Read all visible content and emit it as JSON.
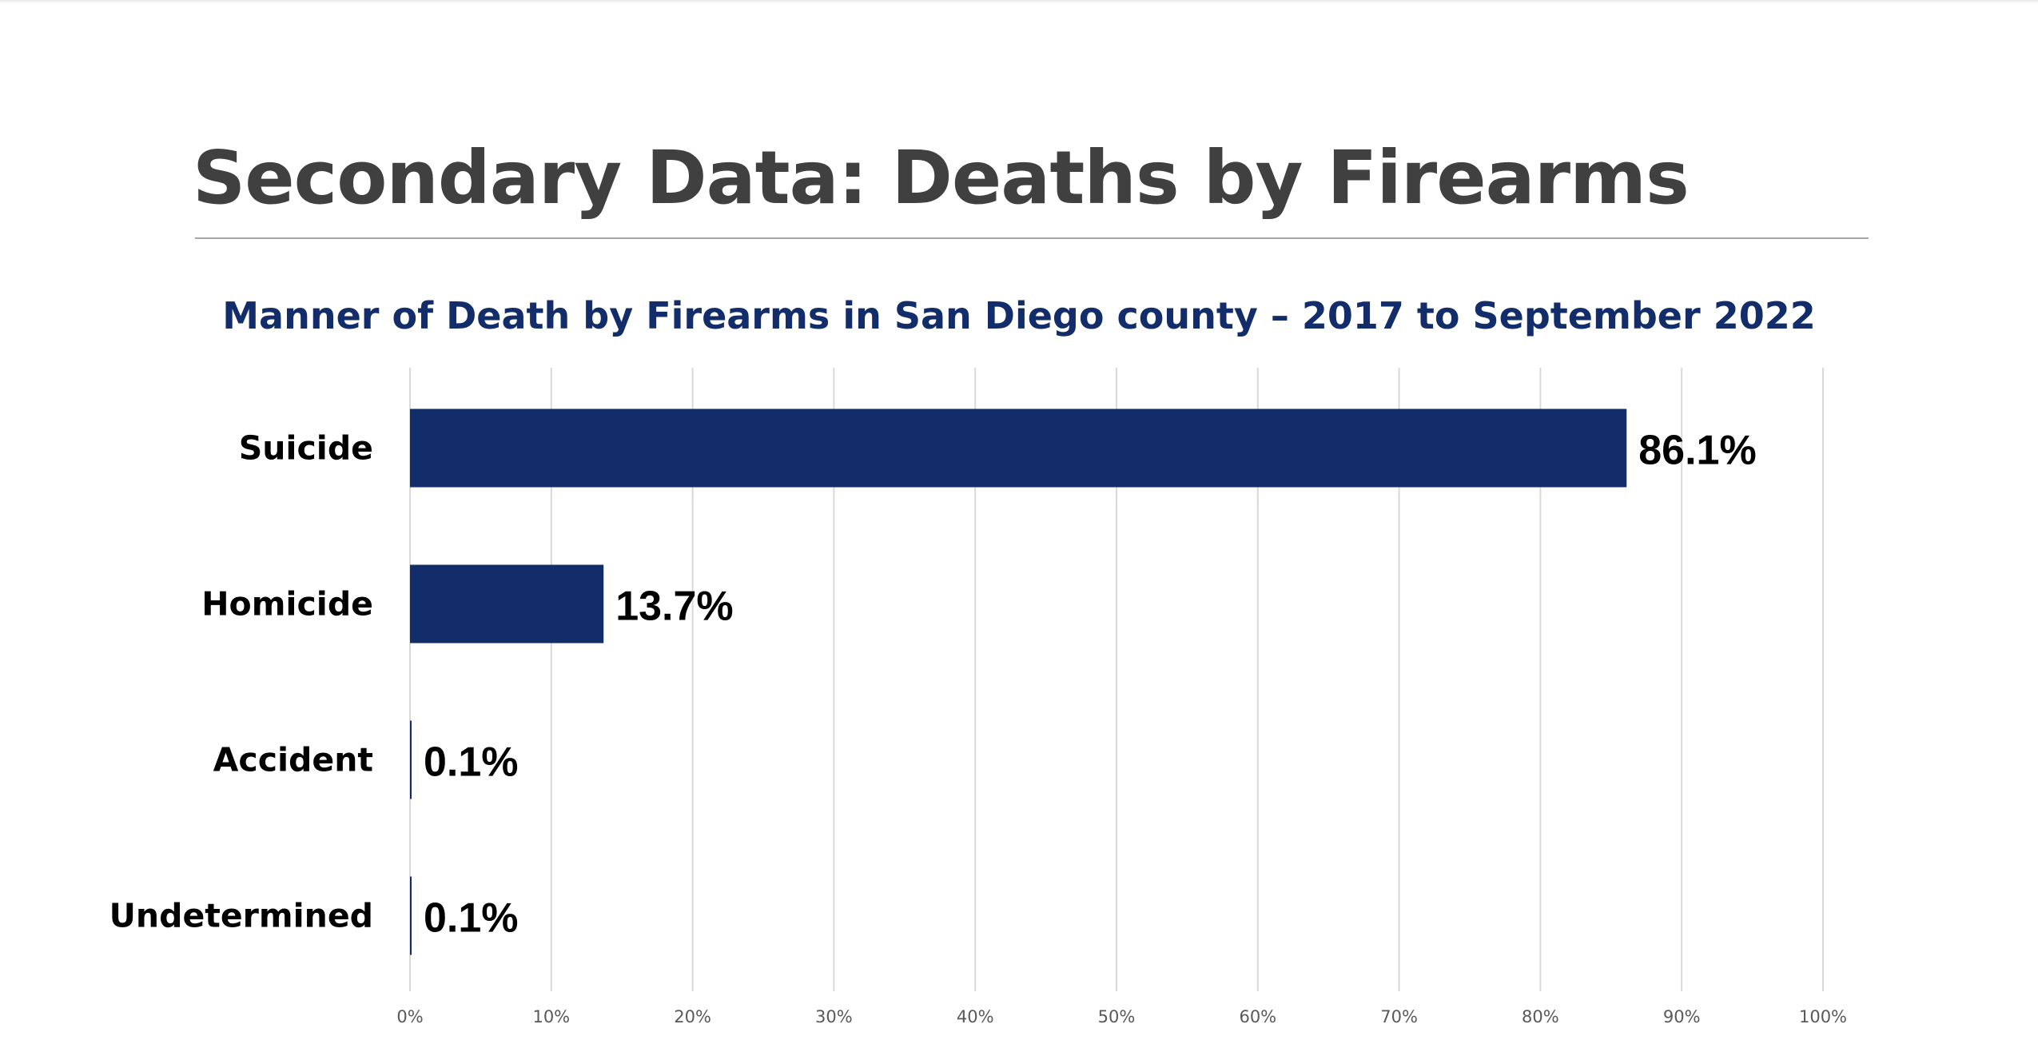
{
  "slide": {
    "title": "Secondary Data: Deaths by Firearms"
  },
  "colors": {
    "bar": "#122d69",
    "title": "#404040",
    "chart_title": "#122d69",
    "gridline": "#d9d9d9"
  },
  "chart_data": {
    "type": "bar",
    "orientation": "horizontal",
    "title": "Manner of Death by Firearms in San Diego county – 2017 to September 2022",
    "categories": [
      "Suicide",
      "Homicide",
      "Accident",
      "Undetermined"
    ],
    "values": [
      86.1,
      13.7,
      0.1,
      0.1
    ],
    "data_labels": [
      "86.1%",
      "13.7%",
      "0.1%",
      "0.1%"
    ],
    "xlim": [
      0,
      100
    ],
    "x_ticks": [
      0,
      10,
      20,
      30,
      40,
      50,
      60,
      70,
      80,
      90,
      100
    ],
    "x_tick_labels": [
      "0%",
      "10%",
      "20%",
      "30%",
      "40%",
      "50%",
      "60%",
      "70%",
      "80%",
      "90%",
      "100%"
    ],
    "xlabel": "",
    "ylabel": "",
    "grid": true,
    "legend": "none"
  }
}
